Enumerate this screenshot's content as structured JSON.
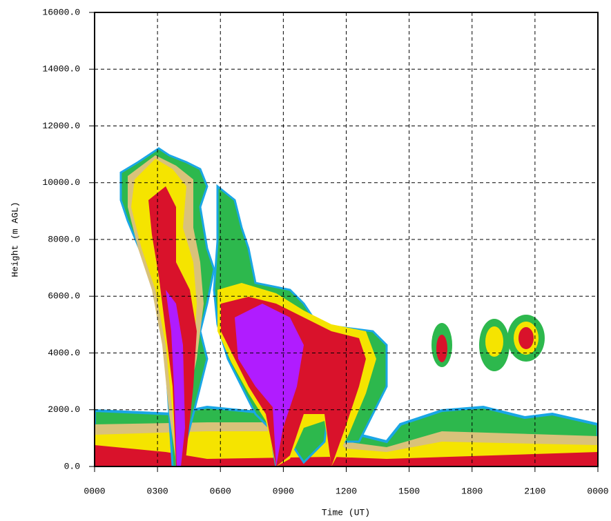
{
  "chart_data": {
    "type": "time-height",
    "x_label": "Time (UT)",
    "y_label": "Height (m AGL)",
    "xlim": [
      0,
      24
    ],
    "xticks": [
      {
        "value": 0,
        "label": "0000"
      },
      {
        "value": 3,
        "label": "0300"
      },
      {
        "value": 6,
        "label": "0600"
      },
      {
        "value": 9,
        "label": "0900"
      },
      {
        "value": 12,
        "label": "1200"
      },
      {
        "value": 15,
        "label": "1500"
      },
      {
        "value": 18,
        "label": "1800"
      },
      {
        "value": 21,
        "label": "2100"
      },
      {
        "value": 24,
        "label": "0000"
      }
    ],
    "ylim": [
      0,
      16000
    ],
    "yticks": [
      {
        "value": 0,
        "label": "0.0"
      },
      {
        "value": 2000,
        "label": "2000.0"
      },
      {
        "value": 4000,
        "label": "4000.0"
      },
      {
        "value": 6000,
        "label": "6000.0"
      },
      {
        "value": 8000,
        "label": "8000.0"
      },
      {
        "value": 10000,
        "label": "10000.0"
      },
      {
        "value": 12000,
        "label": "12000.0"
      },
      {
        "value": 14000,
        "label": "14000.0"
      },
      {
        "value": 16000,
        "label": "16000.0"
      }
    ],
    "grid": true
  }
}
